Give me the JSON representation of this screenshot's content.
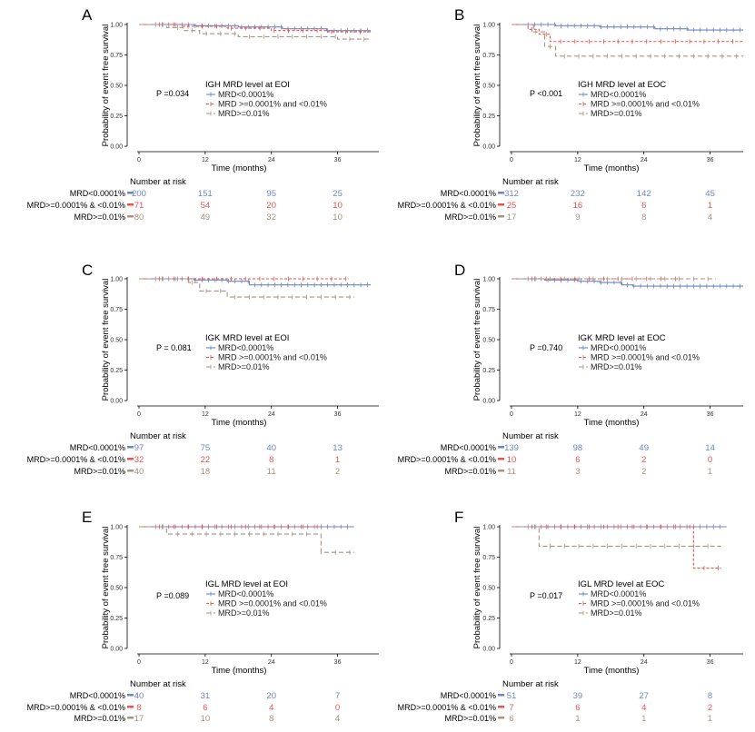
{
  "figure": {
    "colors": {
      "low": "#6d86c0",
      "mid": "#e8534c",
      "high": "#a89380",
      "axis": "#000000"
    },
    "common": {
      "xlabel": "Time (months)",
      "ylabel": "Probability of event free survival",
      "xticks": [
        "0",
        "12",
        "24",
        "36"
      ],
      "yticks": [
        "0.00",
        "0.25",
        "0.50",
        "0.75",
        "1.00"
      ],
      "risk_title": "Number at risk",
      "groups": [
        "MRD<0.0001%",
        "MRD >=0.0001% and <0.01%",
        "MRD>=0.01%"
      ],
      "risk_labels": [
        "MRD<0.0001%",
        "MRD>=0.0001% & <0.01%",
        "MRD>=0.01%"
      ]
    }
  },
  "chart_data": [
    {
      "type": "line",
      "letter": "A",
      "legend_title": "IGH MRD level at EOI",
      "pvalue": "P =0.034",
      "xlim": [
        0,
        42
      ],
      "ylim": [
        0,
        1
      ],
      "series": [
        {
          "name": "MRD<0.0001%",
          "x": [
            0,
            10,
            18,
            26,
            34,
            42
          ],
          "y": [
            1.0,
            0.99,
            0.98,
            0.965,
            0.95,
            0.95
          ]
        },
        {
          "name": "MRD >=0.0001% and <0.01%",
          "x": [
            0,
            8,
            16,
            24,
            34,
            42
          ],
          "y": [
            1.0,
            0.985,
            0.97,
            0.95,
            0.94,
            0.94
          ]
        },
        {
          "name": "MRD>=0.01%",
          "x": [
            0,
            5,
            8,
            11,
            18,
            36,
            42
          ],
          "y": [
            1.0,
            0.975,
            0.95,
            0.925,
            0.9,
            0.88,
            0.88
          ]
        }
      ],
      "risk": [
        [
          "200",
          "151",
          "95",
          "25"
        ],
        [
          "71",
          "54",
          "20",
          "10"
        ],
        [
          "80",
          "49",
          "32",
          "10"
        ]
      ]
    },
    {
      "type": "line",
      "letter": "B",
      "legend_title": "IGH MRD level at EOC",
      "pvalue": "P <0.001",
      "xlim": [
        0,
        42
      ],
      "ylim": [
        0,
        1
      ],
      "series": [
        {
          "name": "MRD<0.0001%",
          "x": [
            0,
            8,
            16,
            26,
            32,
            42
          ],
          "y": [
            1.0,
            0.99,
            0.98,
            0.965,
            0.955,
            0.955
          ]
        },
        {
          "name": "MRD >=0.0001% and <0.01%",
          "x": [
            0,
            3,
            5,
            7,
            42
          ],
          "y": [
            1.0,
            0.96,
            0.92,
            0.86,
            0.86
          ]
        },
        {
          "name": "MRD>=0.01%",
          "x": [
            0,
            4,
            6,
            8,
            42
          ],
          "y": [
            1.0,
            0.94,
            0.82,
            0.74,
            0.74
          ]
        }
      ],
      "risk": [
        [
          "312",
          "232",
          "142",
          "45"
        ],
        [
          "25",
          "16",
          "6",
          "1"
        ],
        [
          "17",
          "9",
          "8",
          "4"
        ]
      ]
    },
    {
      "type": "line",
      "letter": "C",
      "legend_title": "IGK MRD level at EOI",
      "pvalue": "P = 0.081",
      "xlim": [
        0,
        42
      ],
      "ylim": [
        0,
        1
      ],
      "series": [
        {
          "name": "MRD<0.0001%",
          "x": [
            0,
            10,
            16,
            20,
            42
          ],
          "y": [
            1.0,
            0.99,
            0.98,
            0.95,
            0.95
          ]
        },
        {
          "name": "MRD >=0.0001% and <0.01%",
          "x": [
            0,
            38
          ],
          "y": [
            1.0,
            1.0
          ]
        },
        {
          "name": "MRD>=0.01%",
          "x": [
            0,
            9,
            11,
            16,
            39
          ],
          "y": [
            1.0,
            0.97,
            0.9,
            0.85,
            0.85
          ]
        }
      ],
      "risk": [
        [
          "97",
          "75",
          "40",
          "13"
        ],
        [
          "32",
          "22",
          "8",
          "1"
        ],
        [
          "40",
          "18",
          "11",
          "2"
        ]
      ]
    },
    {
      "type": "line",
      "letter": "D",
      "legend_title": "IGK MRD level at EOC",
      "pvalue": "P =0.740",
      "xlim": [
        0,
        42
      ],
      "ylim": [
        0,
        1
      ],
      "series": [
        {
          "name": "MRD<0.0001%",
          "x": [
            0,
            6,
            12,
            16,
            20,
            22,
            42
          ],
          "y": [
            1.0,
            0.99,
            0.98,
            0.97,
            0.95,
            0.94,
            0.94
          ]
        },
        {
          "name": "MRD >=0.0001% and <0.01%",
          "x": [
            0,
            31
          ],
          "y": [
            1.0,
            1.0
          ]
        },
        {
          "name": "MRD>=0.01%",
          "x": [
            0,
            37
          ],
          "y": [
            1.0,
            1.0
          ]
        }
      ],
      "risk": [
        [
          "139",
          "98",
          "49",
          "14"
        ],
        [
          "10",
          "6",
          "2",
          "0"
        ],
        [
          "11",
          "3",
          "2",
          "1"
        ]
      ]
    },
    {
      "type": "line",
      "letter": "E",
      "legend_title": "IGL MRD level at EOI",
      "pvalue": "P =0.089",
      "xlim": [
        0,
        42
      ],
      "ylim": [
        0,
        1
      ],
      "series": [
        {
          "name": "MRD<0.0001%",
          "x": [
            0,
            39
          ],
          "y": [
            1.0,
            1.0
          ]
        },
        {
          "name": "MRD >=0.0001% and <0.01%",
          "x": [
            0,
            33
          ],
          "y": [
            1.0,
            1.0
          ]
        },
        {
          "name": "MRD>=0.01%",
          "x": [
            0,
            5,
            33,
            39
          ],
          "y": [
            1.0,
            0.94,
            0.79,
            0.79
          ]
        }
      ],
      "risk": [
        [
          "40",
          "31",
          "20",
          "7"
        ],
        [
          "8",
          "6",
          "4",
          "0"
        ],
        [
          "17",
          "10",
          "8",
          "4"
        ]
      ]
    },
    {
      "type": "line",
      "letter": "F",
      "legend_title": "IGL MRD level at EOC",
      "pvalue": "P =0.017",
      "xlim": [
        0,
        42
      ],
      "ylim": [
        0,
        1
      ],
      "series": [
        {
          "name": "MRD<0.0001%",
          "x": [
            0,
            39
          ],
          "y": [
            1.0,
            1.0
          ]
        },
        {
          "name": "MRD >=0.0001% and <0.01%",
          "x": [
            0,
            33,
            38
          ],
          "y": [
            1.0,
            0.66,
            0.66
          ]
        },
        {
          "name": "MRD>=0.01%",
          "x": [
            0,
            5,
            38
          ],
          "y": [
            1.0,
            0.84,
            0.84
          ]
        }
      ],
      "risk": [
        [
          "51",
          "39",
          "27",
          "8"
        ],
        [
          "7",
          "6",
          "4",
          "2"
        ],
        [
          "6",
          "1",
          "1",
          "1"
        ]
      ]
    }
  ]
}
